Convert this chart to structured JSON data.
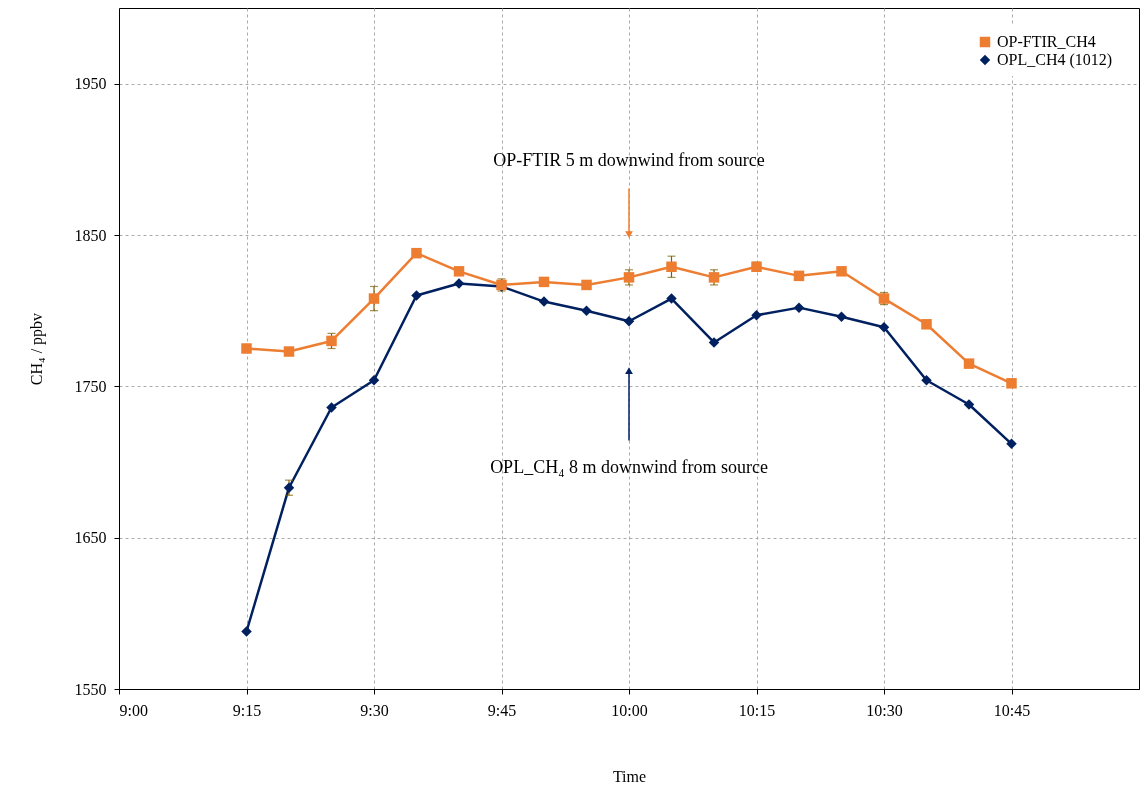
{
  "chart_data": {
    "type": "line",
    "xlabel": "Time",
    "ylabel": "CH₄ / ppbv",
    "x": [
      9.25,
      9.3333,
      9.4167,
      9.5,
      9.5833,
      9.6667,
      9.75,
      9.8333,
      9.9167,
      10,
      10.0833,
      10.1667,
      10.25,
      10.3333,
      10.4167,
      10.5,
      10.5833,
      10.6667,
      10.75
    ],
    "series": [
      {
        "name": "OP-FTIR_CH4",
        "color": "#ed7d31",
        "marker": "square",
        "values": [
          1775,
          1773,
          1780,
          1808,
          1838,
          1826,
          1817,
          1819,
          1817,
          1822,
          1829,
          1822,
          1829,
          1823,
          1826,
          1808,
          1791,
          1765,
          1752
        ],
        "errors": [
          null,
          null,
          5,
          8,
          null,
          null,
          4,
          null,
          null,
          5,
          7,
          5,
          3,
          null,
          null,
          4,
          null,
          null,
          null
        ]
      },
      {
        "name": "OPL_CH4 (1012)",
        "color": "#002060",
        "marker": "diamond",
        "values": [
          1588,
          1683,
          1736,
          1754,
          1810,
          1818,
          1816,
          1806,
          1800,
          1793,
          1808,
          1779,
          1797,
          1802,
          1796,
          1789,
          1754,
          1738,
          1712
        ],
        "errors": [
          null,
          5,
          null,
          null,
          null,
          null,
          null,
          null,
          null,
          null,
          null,
          null,
          null,
          null,
          null,
          null,
          null,
          null,
          null
        ]
      }
    ],
    "xlim": [
      9,
      11
    ],
    "xticks": [
      {
        "value": 9,
        "label": "9:00"
      },
      {
        "value": 9.25,
        "label": "9:15"
      },
      {
        "value": 9.5,
        "label": "9:30"
      },
      {
        "value": 9.75,
        "label": "9:45"
      },
      {
        "value": 10,
        "label": "10:00"
      },
      {
        "value": 10.25,
        "label": "10:15"
      },
      {
        "value": 10.5,
        "label": "10:30"
      },
      {
        "value": 10.75,
        "label": "10:45"
      }
    ],
    "ylim": [
      1550,
      2000
    ],
    "yticks": [
      1550,
      1650,
      1750,
      1850,
      1950
    ],
    "grid": true,
    "legend": "top right",
    "line_style": "solid",
    "annotations": [
      "OP-FTIR 5 m downwind from source",
      "OPL_CH₄  8 m downwind from source"
    ]
  }
}
